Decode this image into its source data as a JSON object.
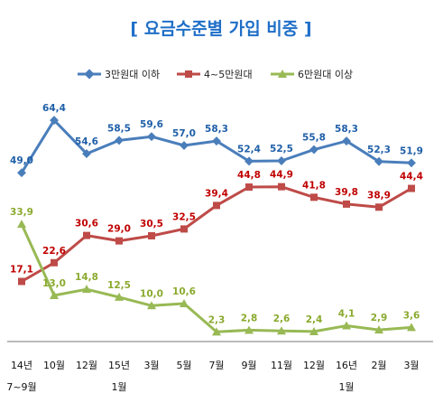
{
  "chart_data": {
    "type": "line",
    "title": "[ 요금수준별 가입 비중 ]",
    "categories": [
      "14년\n7~9월",
      "10월",
      "12월",
      "15년\n1월",
      "3월",
      "5월",
      "7월",
      "9월",
      "11월",
      "12월",
      "16년\n1월",
      "2월",
      "3월"
    ],
    "series": [
      {
        "name": "3만원대 이하",
        "color": "#4a7ebb",
        "label_color": "#1f5fa8",
        "values": [
          49.0,
          64.4,
          54.6,
          58.5,
          59.6,
          57.0,
          58.3,
          52.4,
          52.5,
          55.8,
          58.3,
          52.3,
          51.9
        ],
        "labels": [
          "49,0",
          "64,4",
          "54,6",
          "58,5",
          "59,6",
          "57,0",
          "58,3",
          "52,4",
          "52,5",
          "55,8",
          "58,3",
          "52,3",
          "51,9"
        ]
      },
      {
        "name": "4~5만원대",
        "color": "#be4b48",
        "label_color": "#c00000",
        "values": [
          17.1,
          22.6,
          30.6,
          29.0,
          30.5,
          32.5,
          39.4,
          44.8,
          44.9,
          41.8,
          39.8,
          38.9,
          44.4
        ],
        "labels": [
          "17,1",
          "22,6",
          "30,6",
          "29,0",
          "30,5",
          "32,5",
          "39,4",
          "44,8",
          "44,9",
          "41,8",
          "39,8",
          "38,9",
          "44,4"
        ]
      },
      {
        "name": "6만원대 이상",
        "color": "#98b954",
        "label_color": "#8aaa2e",
        "values": [
          33.9,
          13.0,
          14.8,
          12.5,
          10.0,
          10.6,
          2.3,
          2.8,
          2.6,
          2.4,
          4.1,
          2.9,
          3.6
        ],
        "labels": [
          "33,9",
          "13,0",
          "14,8",
          "12,5",
          "10,0",
          "10,6",
          "2,3",
          "2,8",
          "2,6",
          "2,4",
          "4,1",
          "2,9",
          "3,6"
        ]
      }
    ],
    "ylim": [
      0,
      70
    ],
    "grid": false,
    "legend": "top"
  }
}
